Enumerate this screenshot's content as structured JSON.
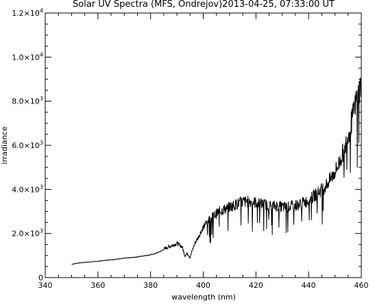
{
  "chart_data": {
    "type": "line",
    "title": "Solar UV Spectra (MFS, Ondrejov)2013-04-25, 07:33:00 UT",
    "xlabel": "wavelength (nm)",
    "ylabel": "irradiance",
    "xlim": [
      340,
      460
    ],
    "ylim": [
      0,
      12000
    ],
    "grid": false,
    "x_ticks": [
      {
        "value": 340,
        "label": "340"
      },
      {
        "value": 360,
        "label": "360"
      },
      {
        "value": 380,
        "label": "380"
      },
      {
        "value": 400,
        "label": "400"
      },
      {
        "value": 420,
        "label": "420"
      },
      {
        "value": 440,
        "label": "440"
      },
      {
        "value": 460,
        "label": "460"
      }
    ],
    "y_ticks": [
      {
        "value": 0,
        "mantissa": "0",
        "exp": ""
      },
      {
        "value": 2000,
        "mantissa": "2.0×10",
        "exp": "3"
      },
      {
        "value": 4000,
        "mantissa": "4.0×10",
        "exp": "3"
      },
      {
        "value": 6000,
        "mantissa": "6.0×10",
        "exp": "3"
      },
      {
        "value": 8000,
        "mantissa": "8.0×10",
        "exp": "3"
      },
      {
        "value": 10000,
        "mantissa": "1.0×10",
        "exp": "4"
      },
      {
        "value": 12000,
        "mantissa": "1.2×10",
        "exp": "4"
      }
    ],
    "series": [
      {
        "x": [
          350,
          352,
          354,
          356,
          358,
          360,
          362,
          364,
          366,
          368,
          370,
          372,
          374,
          376,
          378,
          380,
          382,
          384,
          386,
          388,
          390,
          392,
          393,
          394,
          395,
          396,
          397,
          398,
          400,
          402,
          404,
          406,
          408,
          410,
          412,
          414,
          416,
          418,
          420,
          422,
          424,
          426,
          428,
          430,
          432,
          434,
          436,
          438,
          440,
          442,
          444,
          446,
          448,
          450,
          452,
          454,
          456,
          458,
          460
        ],
        "values": [
          600,
          650,
          680,
          700,
          720,
          740,
          770,
          800,
          820,
          850,
          880,
          900,
          920,
          960,
          1000,
          1030,
          1100,
          1200,
          1350,
          1450,
          1550,
          1400,
          1000,
          1100,
          900,
          1300,
          1600,
          1800,
          2300,
          2600,
          2800,
          3000,
          3100,
          3200,
          3300,
          3400,
          3450,
          3450,
          3400,
          3350,
          3300,
          3250,
          3250,
          3200,
          3200,
          3250,
          3300,
          3400,
          3500,
          3700,
          3900,
          4100,
          4400,
          4800,
          5300,
          6000,
          6900,
          8000,
          8800
        ]
      }
    ]
  }
}
